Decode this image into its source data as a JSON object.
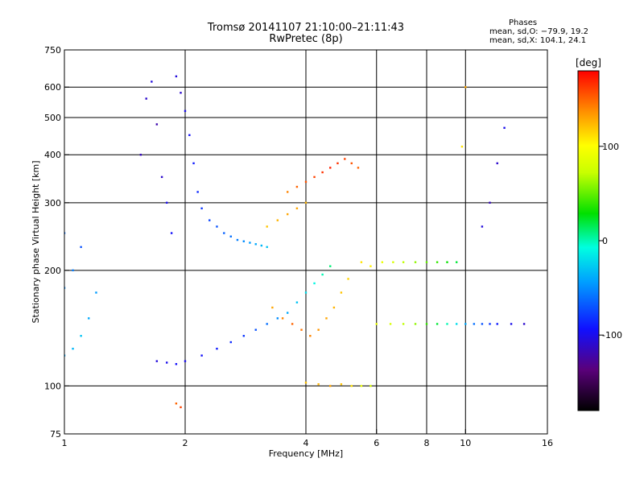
{
  "chart_data": {
    "type": "scatter",
    "title": "Tromsø 20141107 21:10:00–21:11:43",
    "subtitle": "RwPretec (8p)",
    "xlabel": "Frequency [MHz]",
    "ylabel": "Stationary phase Virtual Height [km]",
    "x_scale": "log",
    "y_scale": "log",
    "xlim": [
      1,
      16
    ],
    "ylim": [
      75,
      750
    ],
    "x_ticks": [
      1,
      2,
      4,
      6,
      8,
      10,
      16
    ],
    "y_ticks": [
      75,
      100,
      200,
      300,
      400,
      500,
      600,
      750
    ],
    "x_gridlines": [
      2,
      4,
      6,
      8,
      10
    ],
    "y_gridlines": [
      100,
      200,
      300,
      400,
      500,
      600
    ],
    "grid": true,
    "legend": {
      "heading": "Phases",
      "lines": [
        "mean, sd,O: −79.9, 19.2",
        "mean, sd,X: 104.1, 24.1"
      ],
      "placement": "top-right"
    },
    "colorbar": {
      "label": "[deg]",
      "ticks": [
        100,
        0,
        -100
      ],
      "range": [
        -180,
        180
      ],
      "colormap": "rainbow"
    },
    "series": [
      {
        "description_hidden": "",
        "points": [
          [
            1.55,
            400,
            -115
          ],
          [
            1.6,
            560,
            -110
          ],
          [
            1.65,
            620,
            -105
          ],
          [
            1.7,
            480,
            -120
          ],
          [
            1.75,
            350,
            -110
          ],
          [
            1.8,
            300,
            -100
          ],
          [
            1.85,
            250,
            -95
          ],
          [
            1.9,
            640,
            -105
          ],
          [
            1.95,
            580,
            -110
          ],
          [
            2.0,
            520,
            -100
          ],
          [
            2.05,
            450,
            -95
          ],
          [
            2.1,
            380,
            -90
          ],
          [
            2.15,
            320,
            -85
          ],
          [
            2.2,
            290,
            -80
          ],
          [
            2.3,
            270,
            -75
          ],
          [
            2.4,
            260,
            -70
          ],
          [
            2.5,
            250,
            -65
          ],
          [
            2.6,
            245,
            -60
          ],
          [
            2.7,
            240,
            -55
          ],
          [
            2.8,
            238,
            -50
          ],
          [
            2.9,
            236,
            -45
          ],
          [
            3.0,
            234,
            -40
          ],
          [
            3.1,
            232,
            -35
          ],
          [
            3.2,
            230,
            -30
          ],
          [
            1.7,
            116,
            -105
          ],
          [
            1.8,
            115,
            -100
          ],
          [
            1.9,
            114,
            -95
          ],
          [
            2.0,
            116,
            -100
          ],
          [
            2.2,
            120,
            -95
          ],
          [
            2.4,
            125,
            -90
          ],
          [
            2.6,
            130,
            -85
          ],
          [
            2.8,
            135,
            -80
          ],
          [
            3.0,
            140,
            -70
          ],
          [
            3.2,
            145,
            -60
          ],
          [
            3.4,
            150,
            -50
          ],
          [
            3.6,
            155,
            -40
          ],
          [
            3.8,
            165,
            -30
          ],
          [
            4.0,
            175,
            -20
          ],
          [
            4.2,
            185,
            -10
          ],
          [
            4.4,
            195,
            0
          ],
          [
            4.6,
            205,
            10
          ],
          [
            1.0,
            120,
            -40
          ],
          [
            1.05,
            125,
            -35
          ],
          [
            1.1,
            135,
            -30
          ],
          [
            1.15,
            150,
            -40
          ],
          [
            1.2,
            175,
            -45
          ],
          [
            1.0,
            180,
            -50
          ],
          [
            1.05,
            200,
            -55
          ],
          [
            1.0,
            250,
            -60
          ],
          [
            1.1,
            230,
            -70
          ],
          [
            3.3,
            160,
            130
          ],
          [
            3.5,
            150,
            140
          ],
          [
            3.7,
            145,
            150
          ],
          [
            3.9,
            140,
            145
          ],
          [
            4.1,
            135,
            140
          ],
          [
            4.3,
            140,
            135
          ],
          [
            4.5,
            150,
            130
          ],
          [
            4.7,
            160,
            125
          ],
          [
            4.9,
            175,
            120
          ],
          [
            5.1,
            190,
            115
          ],
          [
            3.6,
            320,
            140
          ],
          [
            3.8,
            330,
            150
          ],
          [
            4.0,
            340,
            155
          ],
          [
            4.2,
            350,
            160
          ],
          [
            4.4,
            360,
            165
          ],
          [
            4.6,
            370,
            170
          ],
          [
            4.8,
            380,
            165
          ],
          [
            5.0,
            390,
            160
          ],
          [
            5.2,
            380,
            155
          ],
          [
            5.4,
            370,
            150
          ],
          [
            3.2,
            260,
            120
          ],
          [
            3.4,
            270,
            125
          ],
          [
            3.6,
            280,
            130
          ],
          [
            3.8,
            290,
            130
          ],
          [
            4.0,
            300,
            125
          ],
          [
            5.5,
            210,
            110
          ],
          [
            5.8,
            205,
            105
          ],
          [
            6.2,
            210,
            90
          ],
          [
            6.6,
            210,
            80
          ],
          [
            7.0,
            210,
            70
          ],
          [
            7.5,
            210,
            60
          ],
          [
            8.0,
            210,
            50
          ],
          [
            8.5,
            210,
            40
          ],
          [
            9.0,
            210,
            30
          ],
          [
            9.5,
            210,
            20
          ],
          [
            6.0,
            145,
            90
          ],
          [
            6.5,
            145,
            80
          ],
          [
            7.0,
            145,
            70
          ],
          [
            7.5,
            145,
            60
          ],
          [
            8.0,
            145,
            40
          ],
          [
            8.5,
            145,
            20
          ],
          [
            9.0,
            145,
            0
          ],
          [
            9.5,
            145,
            -20
          ],
          [
            10.0,
            145,
            -40
          ],
          [
            10.5,
            145,
            -60
          ],
          [
            11.0,
            145,
            -70
          ],
          [
            11.5,
            145,
            -80
          ],
          [
            12.0,
            145,
            -90
          ],
          [
            13.0,
            145,
            -100
          ],
          [
            14.0,
            145,
            -110
          ],
          [
            4.0,
            102,
            120
          ],
          [
            4.3,
            101,
            125
          ],
          [
            4.6,
            100,
            130
          ],
          [
            4.9,
            101,
            120
          ],
          [
            5.2,
            100,
            110
          ],
          [
            5.5,
            100,
            90
          ],
          [
            5.8,
            100,
            80
          ],
          [
            1.9,
            90,
            150
          ],
          [
            1.95,
            88,
            160
          ],
          [
            12.5,
            470,
            -100
          ],
          [
            12.0,
            380,
            -110
          ],
          [
            11.5,
            300,
            -115
          ],
          [
            11.0,
            260,
            -105
          ],
          [
            10.0,
            600,
            130
          ],
          [
            9.8,
            420,
            110
          ]
        ]
      }
    ]
  }
}
